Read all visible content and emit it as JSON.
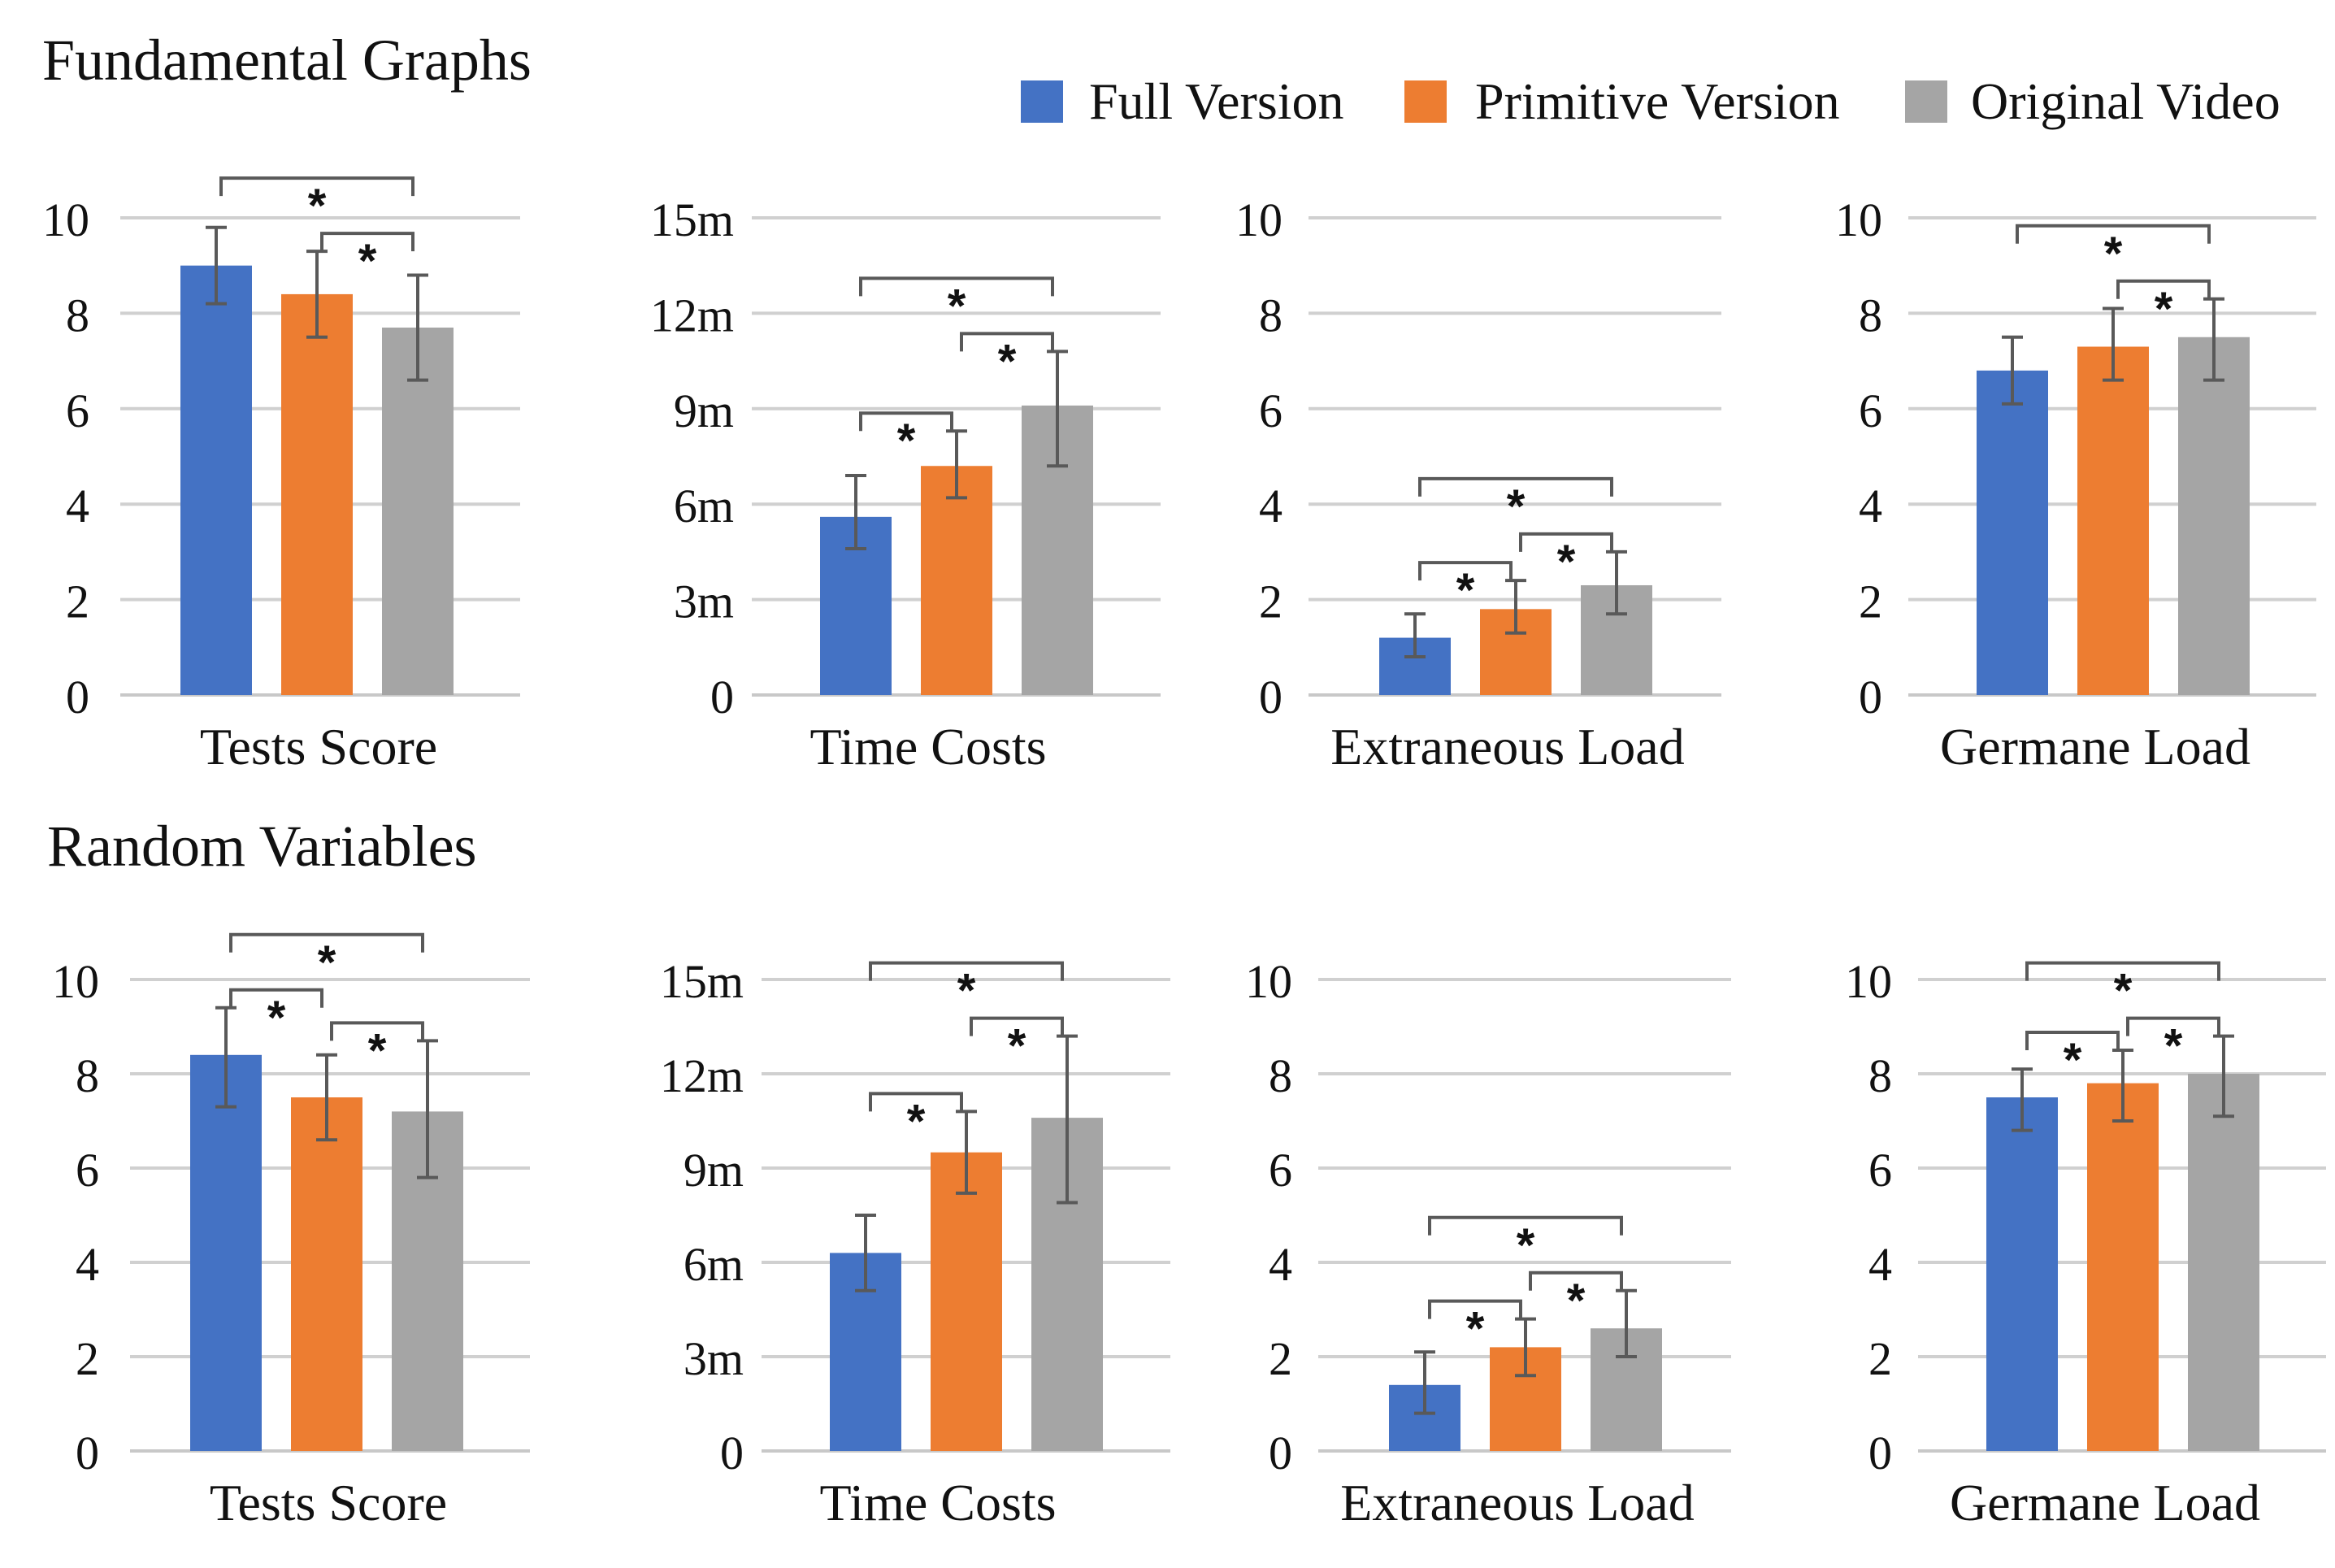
{
  "legend": {
    "entries": [
      {
        "label": "Full Version",
        "color": "#4472c4"
      },
      {
        "label": "Primitive Version",
        "color": "#ed7d31"
      },
      {
        "label": "Original Video",
        "color": "#a5a5a5"
      }
    ]
  },
  "sections": [
    {
      "title": "Fundamental Graphs"
    },
    {
      "title": "Random Variables"
    }
  ],
  "colors": {
    "grid": "#d0d0d0",
    "axis": "#c8c8c8",
    "errorbar": "#595959",
    "bracket": "#595959",
    "text": "#111111"
  },
  "significance_marker": "*",
  "chart_data": [
    {
      "type": "bar",
      "section": "Fundamental Graphs",
      "title": "",
      "xlabel": "Tests Score",
      "ylabel": "",
      "ylim": [
        0,
        10
      ],
      "yticks": [
        0,
        2,
        4,
        6,
        8,
        10
      ],
      "ytick_labels": [
        "0",
        "2",
        "4",
        "6",
        "8",
        "10"
      ],
      "series": [
        {
          "name": "Full Version",
          "value": 9.0,
          "err_low": 8.2,
          "err_high": 9.8
        },
        {
          "name": "Primitive Version",
          "value": 8.4,
          "err_low": 7.5,
          "err_high": 9.3
        },
        {
          "name": "Original Video",
          "value": 7.7,
          "err_low": 6.6,
          "err_high": 8.8
        }
      ],
      "significance": [
        {
          "from": 0,
          "to": 2,
          "label": "*"
        },
        {
          "from": 1,
          "to": 2,
          "label": "*"
        }
      ]
    },
    {
      "type": "bar",
      "section": "Fundamental Graphs",
      "title": "",
      "xlabel": "Time Costs",
      "ylabel": "",
      "ylim": [
        0,
        15
      ],
      "yticks": [
        0,
        3,
        6,
        9,
        12,
        15
      ],
      "ytick_labels": [
        "0",
        "3m",
        "6m",
        "9m",
        "12m",
        "15m"
      ],
      "series": [
        {
          "name": "Full Version",
          "value": 5.6,
          "err_low": 4.6,
          "err_high": 6.9
        },
        {
          "name": "Primitive Version",
          "value": 7.2,
          "err_low": 6.2,
          "err_high": 8.3
        },
        {
          "name": "Original Video",
          "value": 9.1,
          "err_low": 7.2,
          "err_high": 10.8
        }
      ],
      "significance": [
        {
          "from": 0,
          "to": 1,
          "label": "*"
        },
        {
          "from": 1,
          "to": 2,
          "label": "*"
        },
        {
          "from": 0,
          "to": 2,
          "label": "*"
        }
      ]
    },
    {
      "type": "bar",
      "section": "Fundamental Graphs",
      "title": "",
      "xlabel": "Extraneous Load",
      "ylabel": "",
      "ylim": [
        0,
        10
      ],
      "yticks": [
        0,
        2,
        4,
        6,
        8,
        10
      ],
      "ytick_labels": [
        "0",
        "2",
        "4",
        "6",
        "8",
        "10"
      ],
      "series": [
        {
          "name": "Full Version",
          "value": 1.2,
          "err_low": 0.8,
          "err_high": 1.7
        },
        {
          "name": "Primitive Version",
          "value": 1.8,
          "err_low": 1.3,
          "err_high": 2.4
        },
        {
          "name": "Original Video",
          "value": 2.3,
          "err_low": 1.7,
          "err_high": 3.0
        }
      ],
      "significance": [
        {
          "from": 0,
          "to": 1,
          "label": "*"
        },
        {
          "from": 1,
          "to": 2,
          "label": "*"
        },
        {
          "from": 0,
          "to": 2,
          "label": "*"
        }
      ]
    },
    {
      "type": "bar",
      "section": "Fundamental Graphs",
      "title": "",
      "xlabel": "Germane Load",
      "ylabel": "",
      "ylim": [
        0,
        10
      ],
      "yticks": [
        0,
        2,
        4,
        6,
        8,
        10
      ],
      "ytick_labels": [
        "0",
        "2",
        "4",
        "6",
        "8",
        "10"
      ],
      "series": [
        {
          "name": "Full Version",
          "value": 6.8,
          "err_low": 6.1,
          "err_high": 7.5
        },
        {
          "name": "Primitive Version",
          "value": 7.3,
          "err_low": 6.6,
          "err_high": 8.1
        },
        {
          "name": "Original Video",
          "value": 7.5,
          "err_low": 6.6,
          "err_high": 8.3
        }
      ],
      "significance": [
        {
          "from": 1,
          "to": 2,
          "label": "*"
        },
        {
          "from": 0,
          "to": 2,
          "label": "*"
        }
      ]
    },
    {
      "type": "bar",
      "section": "Random Variables",
      "title": "",
      "xlabel": "Tests Score",
      "ylabel": "",
      "ylim": [
        0,
        10
      ],
      "yticks": [
        0,
        2,
        4,
        6,
        8,
        10
      ],
      "ytick_labels": [
        "0",
        "2",
        "4",
        "6",
        "8",
        "10"
      ],
      "series": [
        {
          "name": "Full Version",
          "value": 8.4,
          "err_low": 7.3,
          "err_high": 9.4
        },
        {
          "name": "Primitive Version",
          "value": 7.5,
          "err_low": 6.6,
          "err_high": 8.4
        },
        {
          "name": "Original Video",
          "value": 7.2,
          "err_low": 5.8,
          "err_high": 8.7
        }
      ],
      "significance": [
        {
          "from": 0,
          "to": 1,
          "label": "*"
        },
        {
          "from": 1,
          "to": 2,
          "label": "*"
        },
        {
          "from": 0,
          "to": 2,
          "label": "*"
        }
      ]
    },
    {
      "type": "bar",
      "section": "Random Variables",
      "title": "",
      "xlabel": "Time Costs",
      "ylabel": "",
      "ylim": [
        0,
        15
      ],
      "yticks": [
        0,
        3,
        6,
        9,
        12,
        15
      ],
      "ytick_labels": [
        "0",
        "3m",
        "6m",
        "9m",
        "12m",
        "15m"
      ],
      "series": [
        {
          "name": "Full Version",
          "value": 6.3,
          "err_low": 5.1,
          "err_high": 7.5
        },
        {
          "name": "Primitive Version",
          "value": 9.5,
          "err_low": 8.2,
          "err_high": 10.8
        },
        {
          "name": "Original Video",
          "value": 10.6,
          "err_low": 7.9,
          "err_high": 13.2
        }
      ],
      "significance": [
        {
          "from": 0,
          "to": 1,
          "label": "*"
        },
        {
          "from": 1,
          "to": 2,
          "label": "*"
        },
        {
          "from": 0,
          "to": 2,
          "label": "*"
        }
      ]
    },
    {
      "type": "bar",
      "section": "Random Variables",
      "title": "",
      "xlabel": "Extraneous Load",
      "ylabel": "",
      "ylim": [
        0,
        10
      ],
      "yticks": [
        0,
        2,
        4,
        6,
        8,
        10
      ],
      "ytick_labels": [
        "0",
        "2",
        "4",
        "6",
        "8",
        "10"
      ],
      "series": [
        {
          "name": "Full Version",
          "value": 1.4,
          "err_low": 0.8,
          "err_high": 2.1
        },
        {
          "name": "Primitive Version",
          "value": 2.2,
          "err_low": 1.6,
          "err_high": 2.8
        },
        {
          "name": "Original Video",
          "value": 2.6,
          "err_low": 2.0,
          "err_high": 3.4
        }
      ],
      "significance": [
        {
          "from": 0,
          "to": 1,
          "label": "*"
        },
        {
          "from": 1,
          "to": 2,
          "label": "*"
        },
        {
          "from": 0,
          "to": 2,
          "label": "*"
        }
      ]
    },
    {
      "type": "bar",
      "section": "Random Variables",
      "title": "",
      "xlabel": "Germane Load",
      "ylabel": "",
      "ylim": [
        0,
        10
      ],
      "yticks": [
        0,
        2,
        4,
        6,
        8,
        10
      ],
      "ytick_labels": [
        "0",
        "2",
        "4",
        "6",
        "8",
        "10"
      ],
      "series": [
        {
          "name": "Full Version",
          "value": 7.5,
          "err_low": 6.8,
          "err_high": 8.1
        },
        {
          "name": "Primitive Version",
          "value": 7.8,
          "err_low": 7.0,
          "err_high": 8.5
        },
        {
          "name": "Original Video",
          "value": 8.0,
          "err_low": 7.1,
          "err_high": 8.8
        }
      ],
      "significance": [
        {
          "from": 0,
          "to": 1,
          "label": "*"
        },
        {
          "from": 1,
          "to": 2,
          "label": "*"
        },
        {
          "from": 0,
          "to": 2,
          "label": "*"
        }
      ]
    }
  ]
}
